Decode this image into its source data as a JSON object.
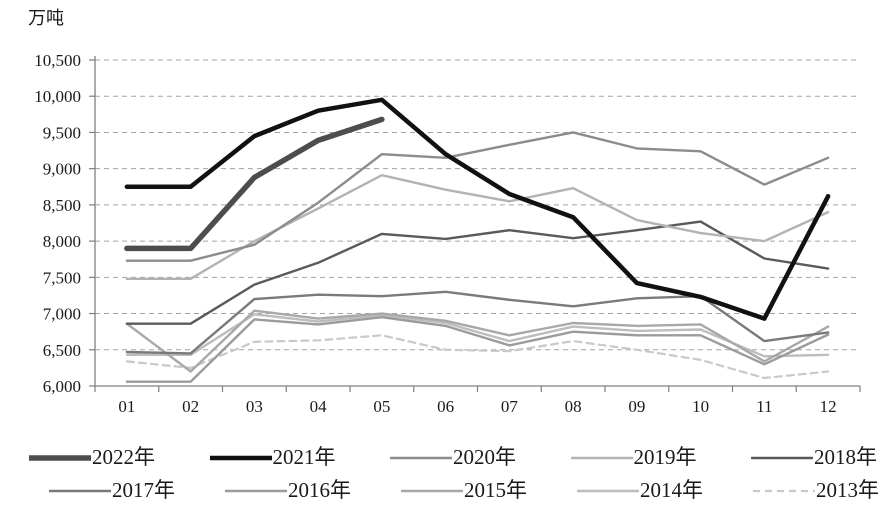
{
  "chart_data": {
    "type": "line",
    "title": "",
    "ylabel": "万吨",
    "xlabel": "",
    "x_categories": [
      "01",
      "02",
      "03",
      "04",
      "05",
      "06",
      "07",
      "08",
      "09",
      "10",
      "11",
      "12"
    ],
    "ylim": [
      6000,
      10500
    ],
    "y_tick_step": 500,
    "y_tick_labels": [
      "10,500",
      "10,000",
      "9,500",
      "9,000",
      "8,500",
      "8,000",
      "7,500",
      "7,000",
      "6,500",
      "6,000"
    ],
    "grid": "horizontal dashed gridlines on",
    "legend_position": "bottom, two rows",
    "series": [
      {
        "name": "2022",
        "label": "2022年",
        "color": "#4d4d4d",
        "width": 5.5,
        "dash": "",
        "values": [
          7900,
          7900,
          8880,
          9390,
          9680,
          null,
          null,
          null,
          null,
          null,
          null,
          null
        ]
      },
      {
        "name": "2021",
        "label": "2021年",
        "color": "#111111",
        "width": 4.5,
        "dash": "",
        "values": [
          8750,
          8750,
          9450,
          9800,
          9950,
          9200,
          8650,
          8330,
          7420,
          7230,
          6930,
          8620
        ]
      },
      {
        "name": "2020",
        "label": "2020年",
        "color": "#8c8c8c",
        "width": 2.4,
        "dash": "",
        "values": [
          7730,
          7730,
          7950,
          8530,
          9200,
          9150,
          9330,
          9500,
          9280,
          9240,
          8780,
          9150
        ]
      },
      {
        "name": "2019",
        "label": "2019年",
        "color": "#b3b3b3",
        "width": 2.4,
        "dash": "",
        "values": [
          7480,
          7480,
          8000,
          8450,
          8910,
          8710,
          8550,
          8730,
          8290,
          8110,
          8000,
          8400
        ]
      },
      {
        "name": "2018",
        "label": "2018年",
        "color": "#5a5a5a",
        "width": 2.4,
        "dash": "",
        "values": [
          6860,
          6860,
          7400,
          7700,
          8100,
          8030,
          8150,
          8040,
          8150,
          8270,
          7760,
          7620
        ]
      },
      {
        "name": "2017",
        "label": "2017年",
        "color": "#7a7a7a",
        "width": 2.4,
        "dash": "",
        "values": [
          6470,
          6450,
          7200,
          7260,
          7240,
          7300,
          7190,
          7100,
          7210,
          7240,
          6620,
          6740
        ]
      },
      {
        "name": "2016",
        "label": "2016年",
        "color": "#9b9b9b",
        "width": 2.4,
        "dash": "",
        "values": [
          6060,
          6060,
          6920,
          6850,
          6950,
          6830,
          6560,
          6750,
          6700,
          6700,
          6300,
          6710
        ]
      },
      {
        "name": "2015",
        "label": "2015年",
        "color": "#a8a8a8",
        "width": 2.4,
        "dash": "",
        "values": [
          6860,
          6200,
          7040,
          6930,
          7000,
          6900,
          6700,
          6870,
          6830,
          6850,
          6340,
          6820
        ]
      },
      {
        "name": "2014",
        "label": "2014年",
        "color": "#bdbdbd",
        "width": 2.4,
        "dash": "",
        "values": [
          6430,
          6430,
          6990,
          6890,
          6980,
          6870,
          6620,
          6820,
          6760,
          6780,
          6410,
          6430
        ]
      },
      {
        "name": "2013",
        "label": "2013年",
        "color": "#c9c9c9",
        "width": 2.2,
        "dash": "7 5",
        "values": [
          6340,
          6250,
          6610,
          6630,
          6700,
          6500,
          6480,
          6620,
          6500,
          6360,
          6110,
          6200
        ]
      }
    ]
  }
}
